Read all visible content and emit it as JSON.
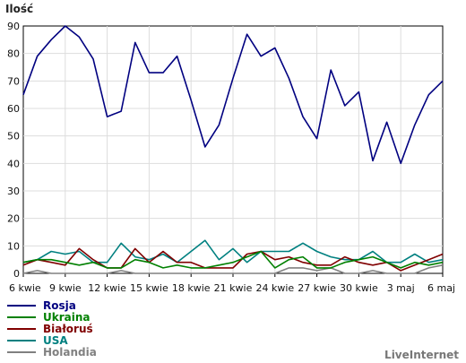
{
  "chart_data": {
    "type": "line",
    "title": "",
    "ylabel": "Ilość",
    "xlabel": "",
    "ylim": [
      0,
      90
    ],
    "yticks": [
      0,
      10,
      20,
      30,
      40,
      50,
      60,
      70,
      80,
      90
    ],
    "grid": true,
    "legend_position": "bottom-left",
    "x_tick_labels": [
      "6 kwie",
      "9 kwie",
      "12 kwie",
      "15 kwie",
      "18 kwie",
      "21 kwie",
      "24 kwie",
      "27 kwie",
      "30 kwie",
      "3 maj",
      "6 maj"
    ],
    "series": [
      {
        "name": "Rosja",
        "color": "#000080",
        "values": [
          65,
          79,
          85,
          90,
          86,
          78,
          57,
          59,
          84,
          73,
          73,
          79,
          63,
          46,
          54,
          71,
          87,
          79,
          82,
          71,
          57,
          49,
          74,
          61,
          66,
          41,
          55,
          40,
          54,
          65,
          70
        ]
      },
      {
        "name": "Ukraina",
        "color": "#008000",
        "values": [
          4,
          5,
          5,
          4,
          3,
          4,
          2,
          2,
          5,
          4,
          2,
          3,
          2,
          2,
          3,
          4,
          6,
          8,
          2,
          5,
          6,
          2,
          2,
          4,
          5,
          6,
          4,
          2,
          4,
          3,
          4
        ]
      },
      {
        "name": "Białoruś",
        "color": "#800000",
        "values": [
          3,
          5,
          4,
          3,
          9,
          5,
          2,
          2,
          9,
          4,
          8,
          4,
          4,
          2,
          2,
          2,
          7,
          8,
          5,
          6,
          4,
          3,
          3,
          6,
          4,
          3,
          4,
          1,
          3,
          5,
          7
        ]
      },
      {
        "name": "USA",
        "color": "#008080",
        "values": [
          4,
          5,
          8,
          7,
          8,
          4,
          4,
          11,
          6,
          5,
          7,
          4,
          8,
          12,
          5,
          9,
          4,
          8,
          8,
          8,
          11,
          8,
          6,
          5,
          5,
          8,
          4,
          4,
          7,
          4,
          5
        ]
      },
      {
        "name": "Holandia",
        "color": "#808080",
        "values": [
          0,
          1,
          0,
          0,
          0,
          0,
          0,
          1,
          0,
          0,
          0,
          0,
          0,
          0,
          0,
          0,
          0,
          0,
          0,
          2,
          2,
          1,
          2,
          0,
          0,
          1,
          0,
          0,
          0,
          2,
          3
        ]
      }
    ]
  },
  "brand": "LiveInternet"
}
